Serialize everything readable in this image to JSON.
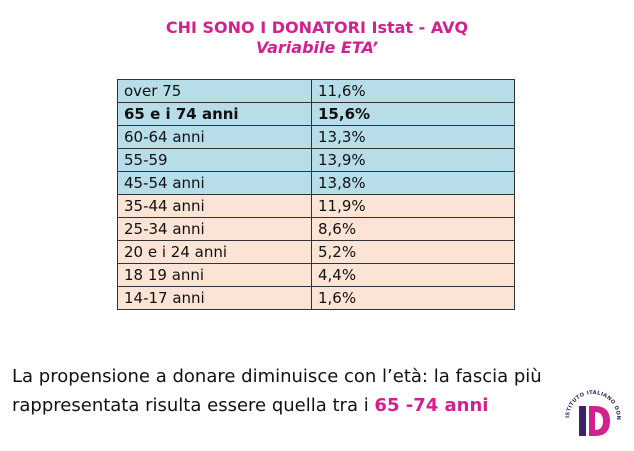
{
  "header": {
    "title": "CHI SONO I DONATORI Istat - AVQ",
    "subtitle": "Variabile ETA’"
  },
  "table": {
    "rows": [
      {
        "label": "over 75",
        "value": "11,6%",
        "group": "blue",
        "bold": false
      },
      {
        "label": "65 e i 74 anni",
        "value": "15,6%",
        "group": "blue",
        "bold": true
      },
      {
        "label": "60-64 anni",
        "value": "13,3%",
        "group": "blue",
        "bold": false
      },
      {
        "label": "55-59",
        "value": "13,9%",
        "group": "blue",
        "bold": false
      },
      {
        "label": "45-54 anni",
        "value": "13,8%",
        "group": "blue",
        "bold": false
      },
      {
        "label": "35-44 anni",
        "value": "11,9%",
        "group": "peach",
        "bold": false
      },
      {
        "label": "25-34 anni",
        "value": "8,6%",
        "group": "peach",
        "bold": false
      },
      {
        "label": "20 e i 24 anni",
        "value": "5,2%",
        "group": "peach",
        "bold": false
      },
      {
        "label": "18 19 anni",
        "value": "4,4%",
        "group": "peach",
        "bold": false
      },
      {
        "label": "14-17 anni",
        "value": "1,6%",
        "group": "peach",
        "bold": false
      }
    ]
  },
  "caption": {
    "line1": "La propensione a donare diminuisce con l’età: la fascia più",
    "line2": "rappresentata risulta essere quella tra i ",
    "highlight": "65 -74 anni"
  },
  "logo": {
    "ring_text": "ISTITUTO ITALIANO DONAZIONE",
    "letters": "ID",
    "colors": {
      "dark": "#3b2466",
      "accent": "#d41f8e"
    }
  },
  "colors": {
    "accent": "#d41f8e",
    "blue_row": "#b7dde8",
    "peach_row": "#fbe4d5"
  }
}
